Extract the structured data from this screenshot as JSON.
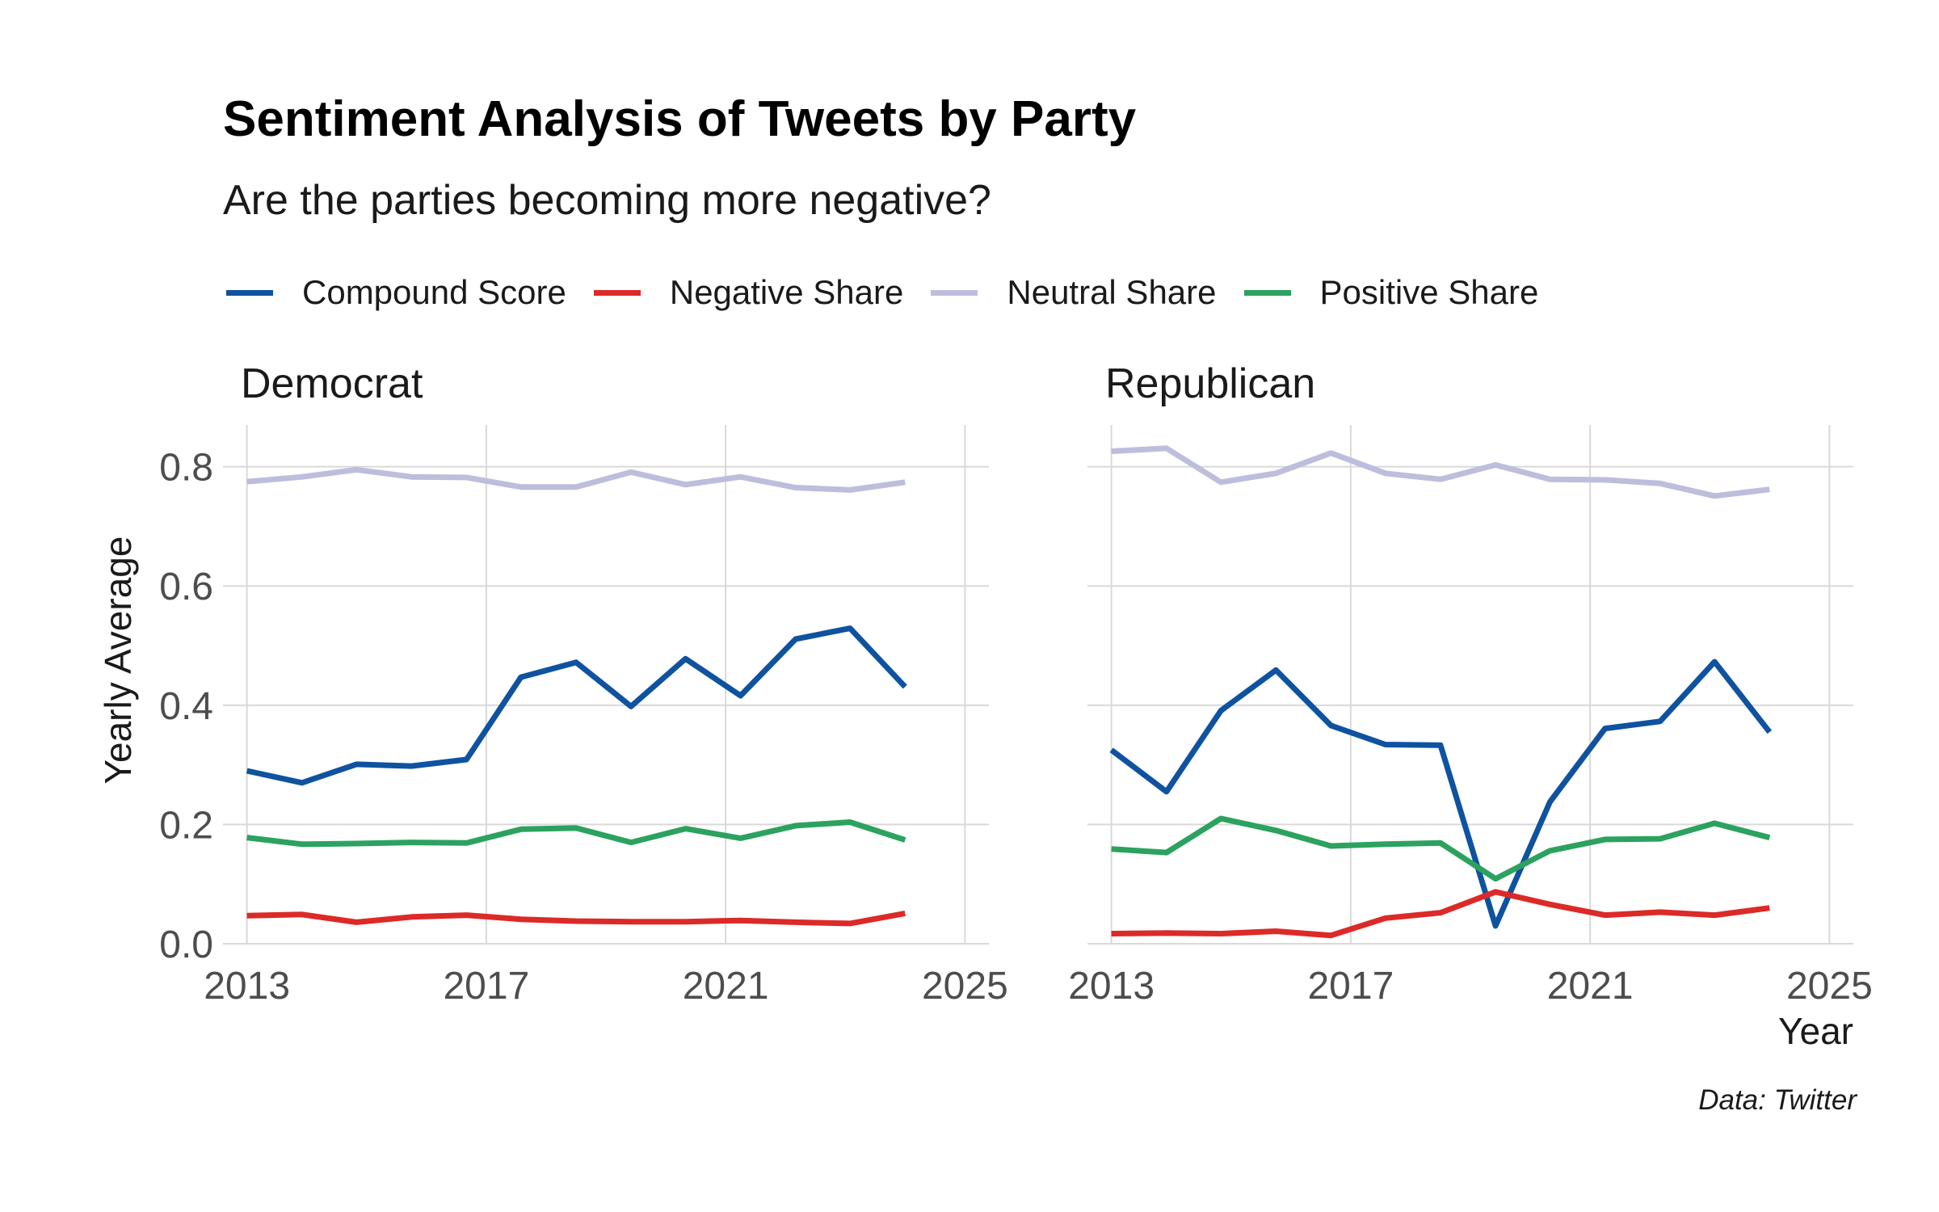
{
  "title": "Sentiment Analysis of Tweets by Party",
  "subtitle": "Are the parties becoming more negative?",
  "caption": "Data: Twitter",
  "legend": [
    {
      "name": "Compound Score",
      "color": "#0f52a0"
    },
    {
      "name": "Negative Share",
      "color": "#dc2a28"
    },
    {
      "name": "Neutral Share",
      "color": "#bdbedc"
    },
    {
      "name": "Positive Share",
      "color": "#2ca25f"
    }
  ],
  "chart_data": {
    "type": "line",
    "xlabel": "Year",
    "ylabel": "Yearly Average",
    "xlim": [
      2012.6,
      2025.4
    ],
    "ylim": [
      0,
      0.87
    ],
    "x_ticks": [
      "2013",
      "2017",
      "2021",
      "2025"
    ],
    "y_ticks": [
      "0.0",
      "0.2",
      "0.4",
      "0.6",
      "0.8"
    ],
    "grid": true,
    "legend_position": "top",
    "facets": [
      {
        "name": "Democrat",
        "x": [
          2013.0,
          2013.92,
          2014.83,
          2015.75,
          2016.67,
          2017.58,
          2018.5,
          2019.42,
          2020.33,
          2021.25,
          2022.17,
          2023.08,
          2024.0
        ],
        "series": [
          {
            "name": "Neutral Share",
            "color": "#bdbedc",
            "values": [
              0.775,
              0.783,
              0.795,
              0.783,
              0.782,
              0.766,
              0.766,
              0.791,
              0.77,
              0.783,
              0.765,
              0.761,
              0.774
            ]
          },
          {
            "name": "Compound Score",
            "color": "#0f52a0",
            "values": [
              0.29,
              0.27,
              0.301,
              0.298,
              0.309,
              0.447,
              0.472,
              0.398,
              0.478,
              0.416,
              0.511,
              0.529,
              0.431
            ]
          },
          {
            "name": "Positive Share",
            "color": "#2ca25f",
            "values": [
              0.178,
              0.167,
              0.168,
              0.17,
              0.169,
              0.192,
              0.194,
              0.17,
              0.193,
              0.177,
              0.198,
              0.204,
              0.174
            ]
          },
          {
            "name": "Negative Share",
            "color": "#dc2a28",
            "values": [
              0.047,
              0.049,
              0.036,
              0.045,
              0.048,
              0.041,
              0.038,
              0.037,
              0.037,
              0.039,
              0.036,
              0.034,
              0.051
            ]
          }
        ]
      },
      {
        "name": "Republican",
        "x": [
          2013.0,
          2013.92,
          2014.83,
          2015.75,
          2016.67,
          2017.58,
          2018.5,
          2019.42,
          2020.33,
          2021.25,
          2022.17,
          2023.08,
          2024.0
        ],
        "series": [
          {
            "name": "Neutral Share",
            "color": "#bdbedc",
            "values": [
              0.826,
              0.831,
              0.774,
              0.789,
              0.823,
              0.789,
              0.779,
              0.803,
              0.779,
              0.778,
              0.772,
              0.751,
              0.762
            ]
          },
          {
            "name": "Compound Score",
            "color": "#0f52a0",
            "values": [
              0.325,
              0.255,
              0.391,
              0.459,
              0.366,
              0.334,
              0.333,
              0.03,
              0.238,
              0.361,
              0.373,
              0.473,
              0.355
            ]
          },
          {
            "name": "Positive Share",
            "color": "#2ca25f",
            "values": [
              0.159,
              0.153,
              0.21,
              0.19,
              0.164,
              0.167,
              0.169,
              0.109,
              0.156,
              0.175,
              0.176,
              0.202,
              0.178
            ]
          },
          {
            "name": "Negative Share",
            "color": "#dc2a28",
            "values": [
              0.017,
              0.018,
              0.017,
              0.021,
              0.014,
              0.043,
              0.052,
              0.087,
              0.066,
              0.048,
              0.053,
              0.048,
              0.06
            ]
          }
        ]
      }
    ]
  }
}
